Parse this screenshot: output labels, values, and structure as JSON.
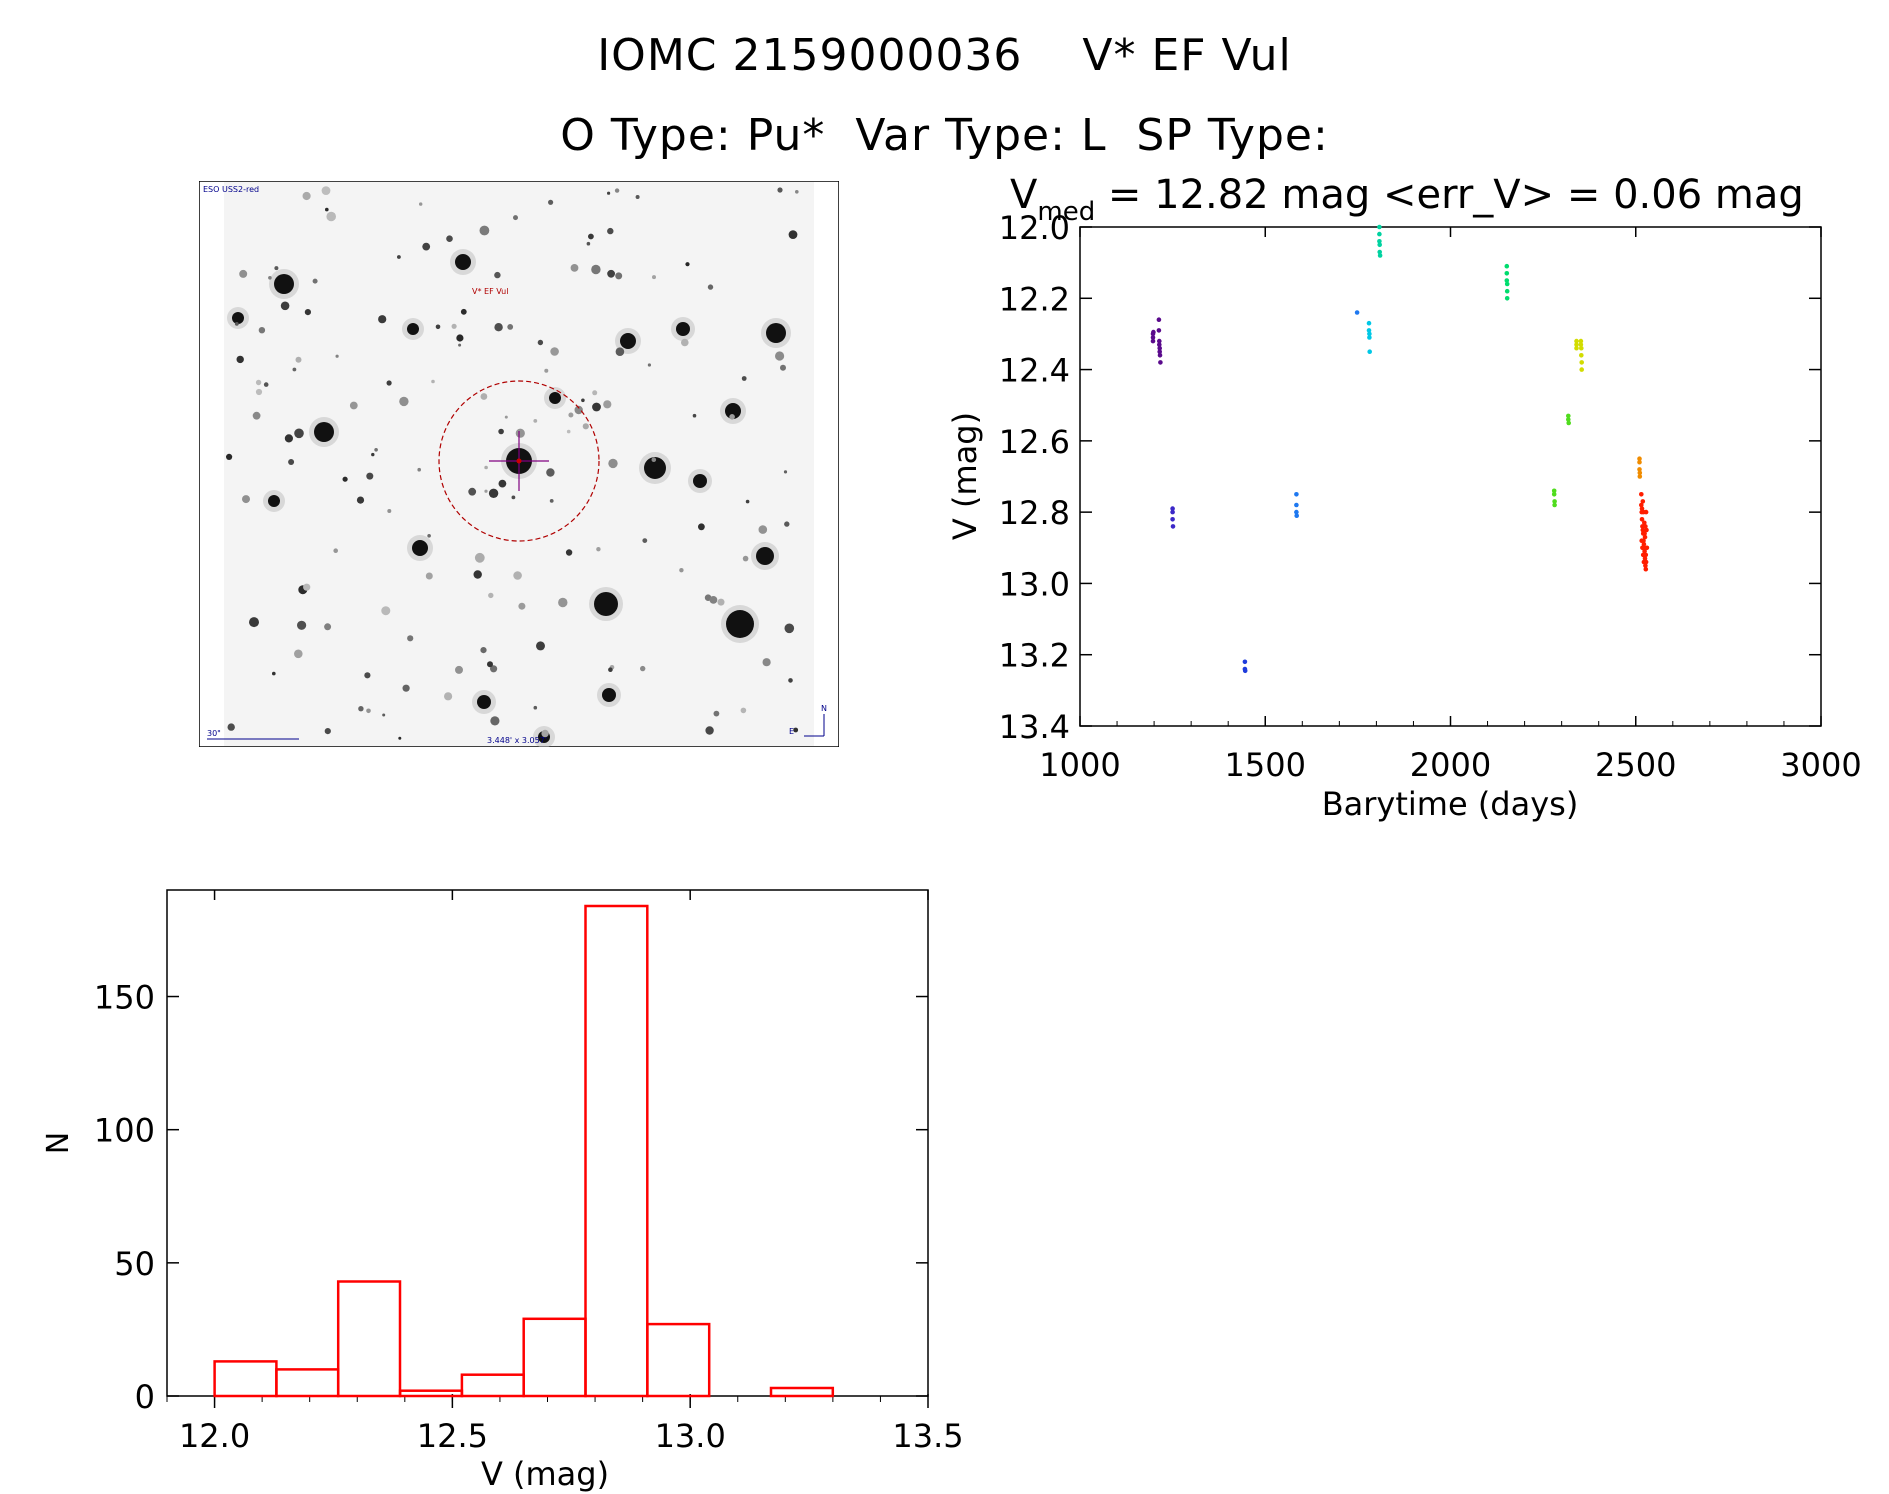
{
  "header": {
    "title_line1": "IOMC 2159000036    V* EF Vul",
    "title_line2": "O Type: Pu*  Var Type: L  SP Type:"
  },
  "finder_chart": {
    "survey_label": "ESO USS2-red",
    "target_label": "V* EF Vul",
    "scale_label": "30\"",
    "fov_label": "3.448' x 3.057'",
    "north_label": "N",
    "east_label": "E",
    "colors": {
      "circle": "#b00000",
      "text_blue": "#00008b",
      "target_red": "#cc0000",
      "cross": "#800080"
    }
  },
  "chart_data": [
    {
      "type": "scatter",
      "title_prefix": "V",
      "title_subscript": "med",
      "title_rest": " = 12.82 mag <err_V> = 0.06 mag",
      "xlabel": "Barytime (days)",
      "ylabel": "V (mag)",
      "xlim": [
        1000,
        3000
      ],
      "ylim": [
        13.4,
        12.0
      ],
      "y_inverted": true,
      "xticks": [
        1000,
        1500,
        2000,
        2500,
        3000
      ],
      "yticks": [
        "12.0",
        "12.2",
        "12.4",
        "12.6",
        "12.8",
        "13.0",
        "13.2",
        "13.4"
      ],
      "groups": [
        {
          "color": "#5a0a8c",
          "points": [
            [
              1197,
              12.3
            ],
            [
              1197,
              12.31
            ],
            [
              1197,
              12.32
            ],
            [
              1198,
              12.295
            ],
            [
              1213,
              12.26
            ],
            [
              1213,
              12.29
            ],
            [
              1214,
              12.32
            ],
            [
              1214,
              12.33
            ],
            [
              1215,
              12.34
            ],
            [
              1215,
              12.35
            ],
            [
              1216,
              12.36
            ],
            [
              1217,
              12.38
            ]
          ]
        },
        {
          "color": "#3c28c8",
          "points": [
            [
              1250,
              12.8
            ],
            [
              1250,
              12.82
            ],
            [
              1251,
              12.84
            ],
            [
              1250,
              12.79
            ]
          ]
        },
        {
          "color": "#1e3cdc",
          "points": [
            [
              1445,
              13.22
            ],
            [
              1445,
              13.24
            ],
            [
              1446,
              13.245
            ]
          ]
        },
        {
          "color": "#1e78f0",
          "points": [
            [
              1584,
              12.75
            ],
            [
              1584,
              12.78
            ],
            [
              1584,
              12.8
            ],
            [
              1585,
              12.81
            ],
            [
              1748,
              12.24
            ]
          ]
        },
        {
          "color": "#00c8e6",
          "points": [
            [
              1780,
              12.27
            ],
            [
              1780,
              12.29
            ],
            [
              1781,
              12.3
            ],
            [
              1781,
              12.31
            ],
            [
              1782,
              12.35
            ]
          ]
        },
        {
          "color": "#00d2a0",
          "points": [
            [
              1808,
              12.0
            ],
            [
              1808,
              12.02
            ],
            [
              1808,
              12.04
            ],
            [
              1809,
              12.05
            ],
            [
              1809,
              12.07
            ],
            [
              1810,
              12.08
            ]
          ]
        },
        {
          "color": "#00dc6e",
          "points": [
            [
              2152,
              12.11
            ],
            [
              2152,
              12.13
            ],
            [
              2152,
              12.15
            ],
            [
              2153,
              12.16
            ],
            [
              2153,
              12.18
            ],
            [
              2153,
              12.2
            ]
          ]
        },
        {
          "color": "#50dc1e",
          "points": [
            [
              2280,
              12.74
            ],
            [
              2280,
              12.75
            ],
            [
              2281,
              12.77
            ],
            [
              2281,
              12.78
            ],
            [
              2318,
              12.53
            ],
            [
              2318,
              12.54
            ],
            [
              2319,
              12.55
            ]
          ]
        },
        {
          "color": "#d2dc00",
          "points": [
            [
              2340,
              12.32
            ],
            [
              2340,
              12.33
            ],
            [
              2340,
              12.34
            ],
            [
              2352,
              12.32
            ],
            [
              2352,
              12.33
            ],
            [
              2353,
              12.34
            ],
            [
              2353,
              12.36
            ],
            [
              2354,
              12.38
            ],
            [
              2354,
              12.4
            ]
          ]
        },
        {
          "color": "#f08c00",
          "points": [
            [
              2510,
              12.65
            ],
            [
              2510,
              12.66
            ],
            [
              2510,
              12.68
            ],
            [
              2511,
              12.69
            ],
            [
              2511,
              12.7
            ]
          ]
        },
        {
          "color": "#ff1e00",
          "points": [
            [
              2515,
              12.75
            ],
            [
              2515,
              12.78
            ],
            [
              2516,
              12.8
            ],
            [
              2517,
              12.82
            ],
            [
              2518,
              12.84
            ],
            [
              2519,
              12.85
            ],
            [
              2520,
              12.86
            ],
            [
              2521,
              12.88
            ],
            [
              2522,
              12.89
            ],
            [
              2523,
              12.9
            ],
            [
              2524,
              12.91
            ],
            [
              2525,
              12.93
            ],
            [
              2526,
              12.95
            ],
            [
              2527,
              12.96
            ],
            [
              2519,
              12.77
            ],
            [
              2521,
              12.8
            ],
            [
              2523,
              12.83
            ],
            [
              2525,
              12.87
            ],
            [
              2527,
              12.92
            ],
            [
              2528,
              12.94
            ],
            [
              2516,
              12.88
            ],
            [
              2518,
              12.9
            ],
            [
              2520,
              12.92
            ],
            [
              2522,
              12.94
            ],
            [
              2524,
              12.86
            ],
            [
              2526,
              12.84
            ],
            [
              2528,
              12.8
            ],
            [
              2529,
              12.85
            ],
            [
              2530,
              12.9
            ],
            [
              2517,
              12.79
            ]
          ]
        }
      ]
    },
    {
      "type": "bar",
      "style": "histogram",
      "xlabel": "V (mag)",
      "ylabel": "N",
      "xlim": [
        11.9,
        13.5
      ],
      "ylim": [
        0,
        190
      ],
      "xticks": [
        "12.0",
        "12.5",
        "13.0",
        "13.5"
      ],
      "yticks": [
        "0",
        "50",
        "100",
        "150"
      ],
      "bin_edges": [
        12.0,
        12.13,
        12.26,
        12.39,
        12.52,
        12.65,
        12.78,
        12.91,
        13.04,
        13.17,
        13.3
      ],
      "values": [
        13,
        10,
        43,
        2,
        8,
        29,
        184,
        27,
        0,
        3
      ],
      "color": "#ff0000"
    }
  ]
}
